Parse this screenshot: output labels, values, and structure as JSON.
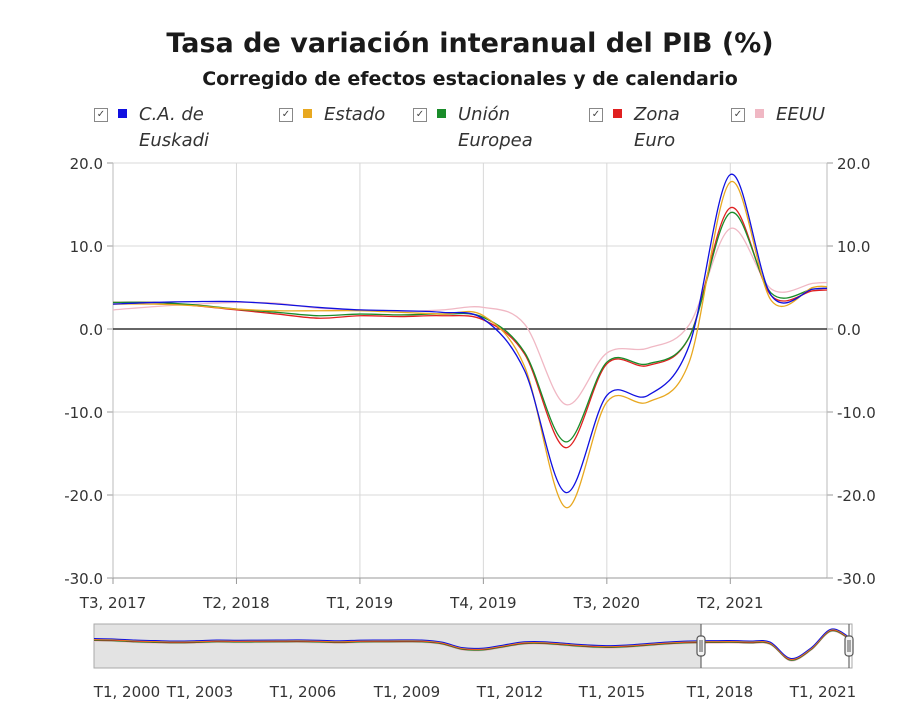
{
  "title": "Tasa de variación interanual del PIB (%)",
  "subtitle": "Corregido de efectos estacionales y de calendario",
  "legend": [
    {
      "label": "C.A. de\nEuskadi",
      "color": "#1010e0",
      "check": "✓"
    },
    {
      "label": "Estado",
      "color": "#e8a820",
      "check": "✓"
    },
    {
      "label": "Unión\nEuropea",
      "color": "#1a8c2a",
      "check": "✓"
    },
    {
      "label": "Zona\nEuro",
      "color": "#e02020",
      "check": "✓"
    },
    {
      "label": "EEUU",
      "color": "#f0b8c4",
      "check": "✓"
    }
  ],
  "chart_data": {
    "type": "line",
    "title": "Tasa de variación interanual del PIB (%)",
    "subtitle": "Corregido de efectos estacionales y de calendario",
    "ylim": [
      -30,
      20
    ],
    "yticks": [
      "20.0",
      "10.0",
      "0.0",
      "-10.0",
      "-20.0",
      "-30.0"
    ],
    "x_tick_labels": [
      "T3, 2017",
      "T2, 2018",
      "T1, 2019",
      "T4, 2019",
      "T3, 2020",
      "T2, 2021"
    ],
    "x": [
      "T3 2017",
      "T4 2017",
      "T1 2018",
      "T2 2018",
      "T3 2018",
      "T4 2018",
      "T1 2019",
      "T2 2019",
      "T3 2019",
      "T4 2019",
      "T1 2020",
      "T2 2020",
      "T3 2020",
      "T4 2020",
      "T1 2021",
      "T2 2021",
      "T3 2021",
      "T4 2021"
    ],
    "series": [
      {
        "name": "C.A. de Euskadi",
        "color": "#1010e0",
        "values": [
          3.0,
          3.2,
          3.3,
          3.3,
          3.0,
          2.6,
          2.3,
          2.2,
          2.0,
          1.2,
          -5.0,
          -19.7,
          -8.0,
          -8.0,
          -2.0,
          18.6,
          4.0,
          4.8
        ]
      },
      {
        "name": "Estado",
        "color": "#e8a820",
        "values": [
          3.0,
          3.0,
          2.8,
          2.4,
          2.2,
          2.2,
          2.2,
          2.0,
          1.8,
          1.6,
          -4.5,
          -21.5,
          -8.8,
          -8.8,
          -4.0,
          17.7,
          3.4,
          5.0
        ]
      },
      {
        "name": "Unión Europea",
        "color": "#1a8c2a",
        "values": [
          3.2,
          3.2,
          2.9,
          2.4,
          2.0,
          1.6,
          1.8,
          1.7,
          1.8,
          1.4,
          -2.8,
          -13.6,
          -4.0,
          -4.2,
          -1.0,
          14.0,
          4.3,
          4.8
        ]
      },
      {
        "name": "Zona Euro",
        "color": "#e02020",
        "values": [
          3.2,
          3.2,
          2.8,
          2.3,
          1.8,
          1.3,
          1.6,
          1.5,
          1.6,
          1.1,
          -3.0,
          -14.3,
          -4.2,
          -4.4,
          -1.0,
          14.6,
          4.0,
          4.6
        ]
      },
      {
        "name": "EEUU",
        "color": "#f0b8c4",
        "values": [
          2.3,
          2.7,
          3.0,
          3.2,
          3.1,
          2.5,
          2.3,
          2.1,
          2.3,
          2.6,
          0.6,
          -9.1,
          -2.9,
          -2.3,
          0.5,
          12.1,
          4.8,
          5.5
        ]
      }
    ],
    "navigator": {
      "tick_labels": [
        "T1, 2000",
        "T1, 2003",
        "T1, 2006",
        "T1, 2009",
        "T1, 2012",
        "T1, 2015",
        "T1, 2018",
        "T1, 2021"
      ],
      "values": [
        4.9,
        4.5,
        3.5,
        3.0,
        2.6,
        2.9,
        3.5,
        3.3,
        3.4,
        3.5,
        3.6,
        3.3,
        2.8,
        3.4,
        3.5,
        3.6,
        3.5,
        1.5,
        -3.8,
        -4.2,
        -1.2,
        1.8,
        1.9,
        0.4,
        -1.0,
        -1.8,
        -1.2,
        0.2,
        1.6,
        2.6,
        2.9,
        3.1,
        2.6,
        1.6,
        -14,
        -4,
        14,
        4.4
      ]
    }
  }
}
